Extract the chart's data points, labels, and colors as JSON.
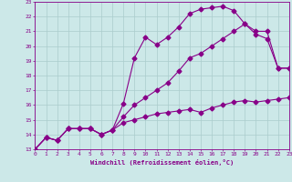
{
  "xlabel": "Windchill (Refroidissement éolien,°C)",
  "ylim": [
    13,
    23
  ],
  "xlim": [
    0,
    23
  ],
  "yticks": [
    13,
    14,
    15,
    16,
    17,
    18,
    19,
    20,
    21,
    22,
    23
  ],
  "xticks": [
    0,
    1,
    2,
    3,
    4,
    5,
    6,
    7,
    8,
    9,
    10,
    11,
    12,
    13,
    14,
    15,
    16,
    17,
    18,
    19,
    20,
    21,
    22,
    23
  ],
  "background_color": "#cce8e8",
  "grid_color": "#aacccc",
  "line_color": "#880088",
  "curve1_x": [
    0,
    1,
    2,
    3,
    4,
    5,
    6,
    7,
    8,
    9,
    10,
    11,
    12,
    13,
    14,
    15,
    16,
    17,
    18,
    19,
    20,
    21,
    22,
    23
  ],
  "curve1_y": [
    13.0,
    13.8,
    13.6,
    14.4,
    14.4,
    14.4,
    14.0,
    14.3,
    14.8,
    15.0,
    15.2,
    15.4,
    15.5,
    15.6,
    15.7,
    15.5,
    15.8,
    16.0,
    16.2,
    16.3,
    16.2,
    16.3,
    16.4,
    16.5
  ],
  "curve2_x": [
    0,
    1,
    2,
    3,
    4,
    5,
    6,
    7,
    8,
    9,
    10,
    11,
    12,
    13,
    14,
    15,
    16,
    17,
    18,
    19,
    20,
    21,
    22,
    23
  ],
  "curve2_y": [
    13.0,
    13.8,
    13.6,
    14.4,
    14.4,
    14.4,
    14.0,
    14.3,
    15.2,
    16.0,
    16.5,
    17.0,
    17.5,
    18.3,
    19.2,
    19.5,
    20.0,
    20.5,
    21.0,
    21.5,
    20.8,
    20.5,
    18.5,
    18.5
  ],
  "curve3_x": [
    0,
    1,
    2,
    3,
    4,
    5,
    6,
    7,
    8,
    9,
    10,
    11,
    12,
    13,
    14,
    15,
    16,
    17,
    18,
    19,
    20,
    21,
    22,
    23
  ],
  "curve3_y": [
    13.0,
    13.8,
    13.6,
    14.4,
    14.4,
    14.4,
    14.0,
    14.3,
    16.1,
    19.2,
    20.6,
    20.1,
    20.6,
    21.3,
    22.2,
    22.5,
    22.6,
    22.7,
    22.4,
    21.5,
    21.0,
    21.0,
    18.5,
    18.5
  ]
}
